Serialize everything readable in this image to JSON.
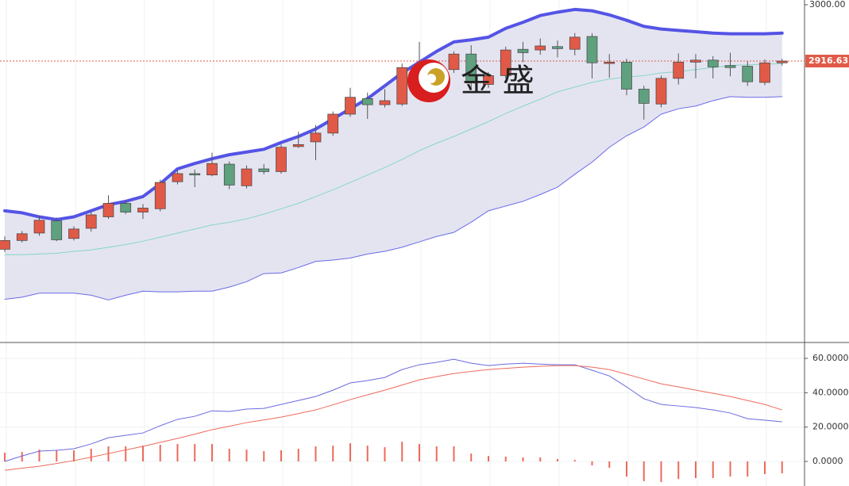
{
  "chart_data": [
    {
      "type": "candlestick",
      "open": [
        2638,
        2651,
        2662,
        2680,
        2654,
        2669,
        2686,
        2706,
        2693,
        2698,
        2738,
        2750,
        2748,
        2764,
        2732,
        2757,
        2753,
        2790,
        2797,
        2810,
        2838,
        2861,
        2852,
        2853,
        2902,
        2894,
        2904,
        2927,
        2882,
        2895,
        2934,
        2933,
        2938,
        2934,
        2953,
        2913,
        2915,
        2875,
        2853,
        2891,
        2915,
        2918,
        2910,
        2909,
        2885,
        2914
      ],
      "high": [
        2657,
        2665,
        2688,
        2685,
        2672,
        2694,
        2718,
        2710,
        2705,
        2741,
        2755,
        2756,
        2781,
        2768,
        2762,
        2764,
        2793,
        2812,
        2822,
        2842,
        2877,
        2870,
        2875,
        2913,
        2945,
        2906,
        2931,
        2940,
        2900,
        2938,
        2945,
        2950,
        2947,
        2958,
        2958,
        2927,
        2920,
        2880,
        2895,
        2928,
        2927,
        2924,
        2929,
        2916,
        2919,
        2920
      ],
      "low": [
        2634,
        2648,
        2658,
        2650,
        2651,
        2664,
        2683,
        2690,
        2683,
        2694,
        2734,
        2730,
        2746,
        2727,
        2728,
        2749,
        2750,
        2788,
        2770,
        2806,
        2834,
        2831,
        2848,
        2850,
        2886,
        2885,
        2899,
        2876,
        2877,
        2891,
        2915,
        2926,
        2922,
        2925,
        2891,
        2892,
        2866,
        2830,
        2848,
        2882,
        2891,
        2891,
        2894,
        2880,
        2881,
        2910
      ],
      "close": [
        2651,
        2661,
        2681,
        2652,
        2668,
        2689,
        2706,
        2693,
        2699,
        2737,
        2750,
        2748,
        2765,
        2733,
        2757,
        2753,
        2789,
        2793,
        2810,
        2838,
        2863,
        2852,
        2858,
        2907,
        2894,
        2901,
        2927,
        2884,
        2895,
        2933,
        2929,
        2939,
        2935,
        2952,
        2914,
        2915,
        2875,
        2854,
        2891,
        2915,
        2918,
        2908,
        2907,
        2886,
        2914,
        2916.63
      ],
      "up_color": "#e05a47",
      "down_color": "#5fa07f",
      "overlays": [
        {
          "color": "#5454e6",
          "width": 4,
          "values": [
            2695,
            2692,
            2686,
            2682,
            2686,
            2695,
            2704,
            2709,
            2716,
            2735,
            2757,
            2765,
            2772,
            2778,
            2782,
            2786,
            2796,
            2805,
            2816,
            2831,
            2846,
            2861,
            2880,
            2899,
            2915,
            2931,
            2945,
            2948,
            2952,
            2965,
            2974,
            2984,
            2989,
            2993,
            2991,
            2985,
            2977,
            2968,
            2964,
            2962,
            2960,
            2958,
            2957,
            2957,
            2957,
            2958
          ]
        },
        {
          "color": "#6a6ae8",
          "width": 1,
          "values": [
            2564,
            2567,
            2573,
            2573,
            2573,
            2570,
            2563,
            2570,
            2576,
            2575,
            2575,
            2576,
            2576,
            2582,
            2590,
            2602,
            2603,
            2611,
            2620,
            2622,
            2625,
            2631,
            2635,
            2641,
            2649,
            2657,
            2663,
            2678,
            2695,
            2702,
            2709,
            2719,
            2730,
            2749,
            2767,
            2789,
            2806,
            2819,
            2838,
            2846,
            2850,
            2858,
            2864,
            2863,
            2863,
            2864
          ]
        },
        {
          "color": "#86d6c4",
          "width": 1,
          "values": [
            2630,
            2630,
            2631,
            2632,
            2635,
            2637,
            2641,
            2645,
            2650,
            2656,
            2662,
            2668,
            2674,
            2678,
            2683,
            2690,
            2698,
            2706,
            2716,
            2726,
            2737,
            2748,
            2759,
            2771,
            2784,
            2795,
            2805,
            2816,
            2827,
            2839,
            2850,
            2860,
            2871,
            2878,
            2885,
            2890,
            2893,
            2895,
            2899,
            2901,
            2904,
            2907,
            2910,
            2911,
            2912,
            2913
          ]
        }
      ],
      "band_fill": "#e4e4f1",
      "price_line": 2916.63,
      "price_color": "#e05a47",
      "ylim": [
        2500,
        3007
      ],
      "yticks": [
        {
          "value": 3000,
          "label": "3000.00"
        }
      ],
      "watermark": "金 盛"
    },
    {
      "type": "macd",
      "series": [
        {
          "color": "#6a6ae0",
          "values": [
            0,
            3.2,
            6.0,
            6.5,
            7.4,
            10.2,
            13.8,
            15.2,
            16.6,
            20.8,
            24.5,
            26.3,
            29.5,
            29.1,
            30.5,
            30.9,
            33.2,
            35.5,
            37.8,
            41.5,
            45.7,
            47.1,
            48.9,
            53.5,
            56.3,
            57.7,
            59.5,
            57.2,
            55.8,
            56.7,
            57.2,
            56.7,
            56.3,
            56.3,
            53.1,
            49.8,
            43.4,
            36.5,
            33.2,
            32.3,
            31.4,
            30.0,
            28.2,
            24.9,
            24.0,
            23.1
          ]
        },
        {
          "color": "#ee6a5a",
          "values": [
            -5.1,
            -3.9,
            -2.8,
            -1.2,
            0.5,
            2.5,
            4.6,
            6.7,
            8.8,
            11.1,
            13.4,
            15.9,
            18.5,
            20.5,
            22.6,
            24.2,
            25.8,
            27.9,
            30.0,
            33.0,
            36.0,
            38.8,
            41.5,
            44.5,
            47.5,
            49.4,
            51.2,
            52.4,
            53.5,
            54.2,
            54.9,
            55.4,
            55.8,
            55.8,
            54.9,
            53.5,
            50.8,
            48.0,
            45.2,
            43.4,
            41.5,
            39.7,
            37.8,
            35.5,
            33.2,
            30.0
          ]
        }
      ],
      "histogram": {
        "color": "#ee6a5a",
        "values": [
          5.1,
          5.5,
          6.9,
          6.5,
          6.5,
          7.4,
          8.8,
          8.8,
          9.2,
          9.7,
          10.2,
          10.2,
          10.2,
          7.4,
          6.9,
          6.0,
          6.5,
          7.4,
          8.8,
          9.2,
          10.6,
          9.2,
          8.3,
          11.5,
          10.2,
          8.8,
          8.8,
          4.6,
          3.2,
          2.8,
          2.3,
          2.3,
          1.4,
          0.9,
          -2.3,
          -3.7,
          -8.8,
          -11.5,
          -12.0,
          -10.2,
          -9.7,
          -9.7,
          -8.8,
          -8.8,
          -7.4,
          -6.9
        ]
      },
      "ylim": [
        -14.3,
        68.8
      ],
      "yticks": [
        {
          "value": 0,
          "label": "0.0000"
        },
        {
          "value": 20,
          "label": "20.0000"
        },
        {
          "value": 40,
          "label": "40.0000"
        },
        {
          "value": 60,
          "label": "60.0000"
        }
      ],
      "grid": true
    }
  ]
}
